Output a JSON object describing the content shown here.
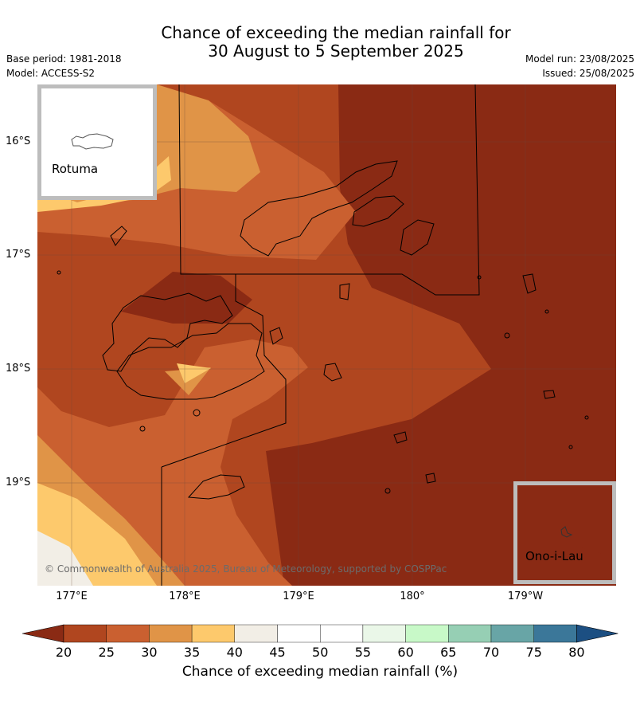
{
  "title_line1": "Chance of exceeding the median rainfall for",
  "title_line2": "30 August to 5 September 2025",
  "base_period": "Base period: 1981-2018",
  "model": "Model: ACCESS-S2",
  "model_run": "Model run: 23/08/2025",
  "issued": "Issued: 25/08/2025",
  "lat_labels": [
    "16°S",
    "17°S",
    "18°S",
    "19°S"
  ],
  "lon_labels": [
    "177°E",
    "178°E",
    "179°E",
    "180°",
    "179°W"
  ],
  "inset_rotuma": "Rotuma",
  "inset_ono": "Ono-i-Lau",
  "credit": "© Commonwealth of Australia 2025, Bureau of Meteorology, supported by COSPPac",
  "colorbar": {
    "ticks": [
      "20",
      "25",
      "30",
      "35",
      "40",
      "45",
      "50",
      "55",
      "60",
      "65",
      "70",
      "75",
      "80"
    ],
    "colors": [
      "#8a2a14",
      "#b0461f",
      "#ca6030",
      "#e09447",
      "#fdc96c",
      "#f2eee6",
      "#ffffff",
      "#ffffff",
      "#eaf7e8",
      "#c8f9c8",
      "#96cfb4",
      "#68a5a6",
      "#3b7799",
      "#1c4f82"
    ],
    "label": "Chance of exceeding median rainfall (%)"
  }
}
